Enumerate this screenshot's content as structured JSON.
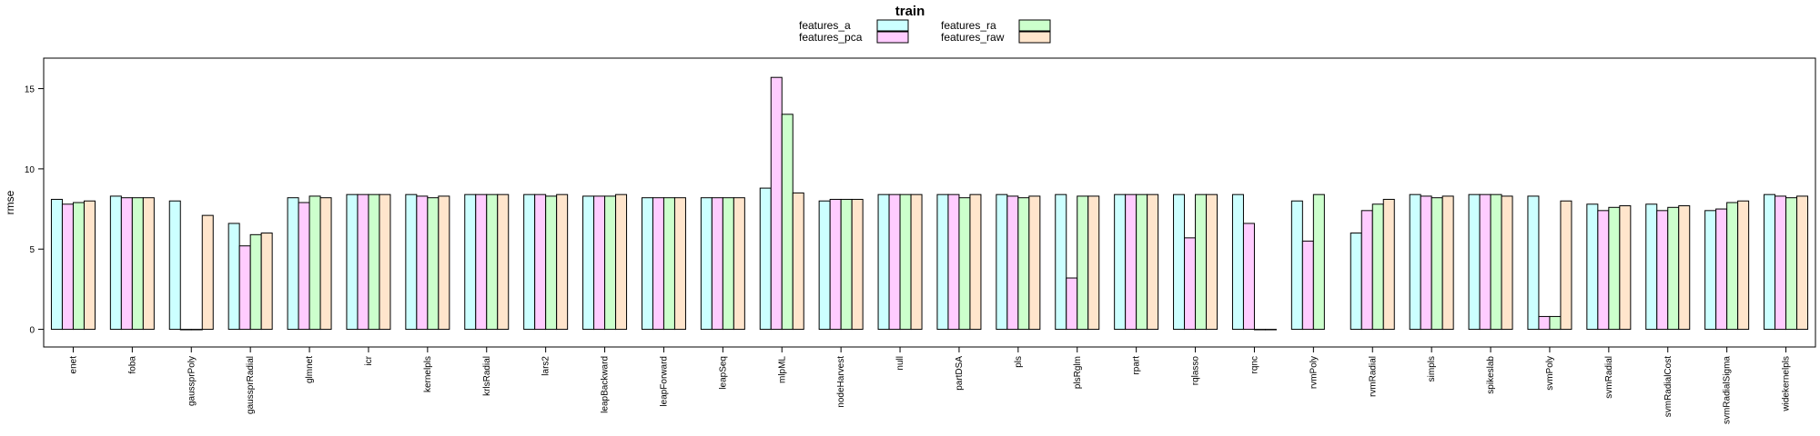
{
  "chart_data": {
    "type": "bar",
    "title": "train",
    "xlabel": "",
    "ylabel": "rmse",
    "ylim": [
      -1.1,
      16.9
    ],
    "yticks": [
      0,
      5,
      10,
      15
    ],
    "legend_position": "top-center",
    "grid": false,
    "categories": [
      "enet",
      "foba",
      "gaussprPoly",
      "gaussprRadial",
      "glmnet",
      "icr",
      "kernelpls",
      "krlsRadial",
      "lars2",
      "leapBackward",
      "leapForward",
      "leapSeq",
      "mlpML",
      "nodeHarvest",
      "null",
      "partDSA",
      "pls",
      "plsRglm",
      "rpart",
      "rqlasso",
      "rqnc",
      "rvmPoly",
      "rvmRadial",
      "simpls",
      "spikeslab",
      "svmPoly",
      "svmRadial",
      "svmRadialCost",
      "svmRadialSigma",
      "widekernelpls"
    ],
    "series": [
      {
        "name": "features_a",
        "color": "#ccffff",
        "values": [
          8.1,
          8.3,
          8.0,
          6.6,
          8.2,
          8.4,
          8.4,
          8.4,
          8.4,
          8.3,
          8.2,
          8.2,
          8.8,
          8.0,
          8.4,
          8.4,
          8.4,
          8.4,
          8.4,
          8.4,
          8.4,
          8.0,
          6.0,
          8.4,
          8.4,
          8.3,
          7.8,
          7.8,
          7.4,
          8.4
        ]
      },
      {
        "name": "features_pca",
        "color": "#ffccff",
        "values": [
          7.8,
          8.2,
          0.0,
          5.2,
          7.9,
          8.4,
          8.3,
          8.4,
          8.4,
          8.3,
          8.2,
          8.2,
          15.7,
          8.1,
          8.4,
          8.4,
          8.3,
          3.2,
          8.4,
          5.7,
          6.6,
          5.5,
          7.4,
          8.3,
          8.4,
          0.8,
          7.4,
          7.4,
          7.5,
          8.3
        ]
      },
      {
        "name": "features_ra",
        "color": "#ccffcc",
        "values": [
          7.9,
          8.2,
          0.0,
          5.9,
          8.3,
          8.4,
          8.2,
          8.4,
          8.3,
          8.3,
          8.2,
          8.2,
          13.4,
          8.1,
          8.4,
          8.2,
          8.2,
          8.3,
          8.4,
          8.4,
          0.0,
          8.4,
          7.8,
          8.2,
          8.4,
          0.8,
          7.6,
          7.6,
          7.9,
          8.2
        ]
      },
      {
        "name": "features_raw",
        "color": "#ffe5cc",
        "values": [
          8.0,
          8.2,
          7.1,
          6.0,
          8.2,
          8.4,
          8.3,
          8.4,
          8.4,
          8.4,
          8.2,
          8.2,
          8.5,
          8.1,
          8.4,
          8.4,
          8.3,
          8.3,
          8.4,
          8.4,
          0.0,
          null,
          8.1,
          8.3,
          8.3,
          8.0,
          7.7,
          7.7,
          8.0,
          8.3
        ]
      }
    ]
  }
}
